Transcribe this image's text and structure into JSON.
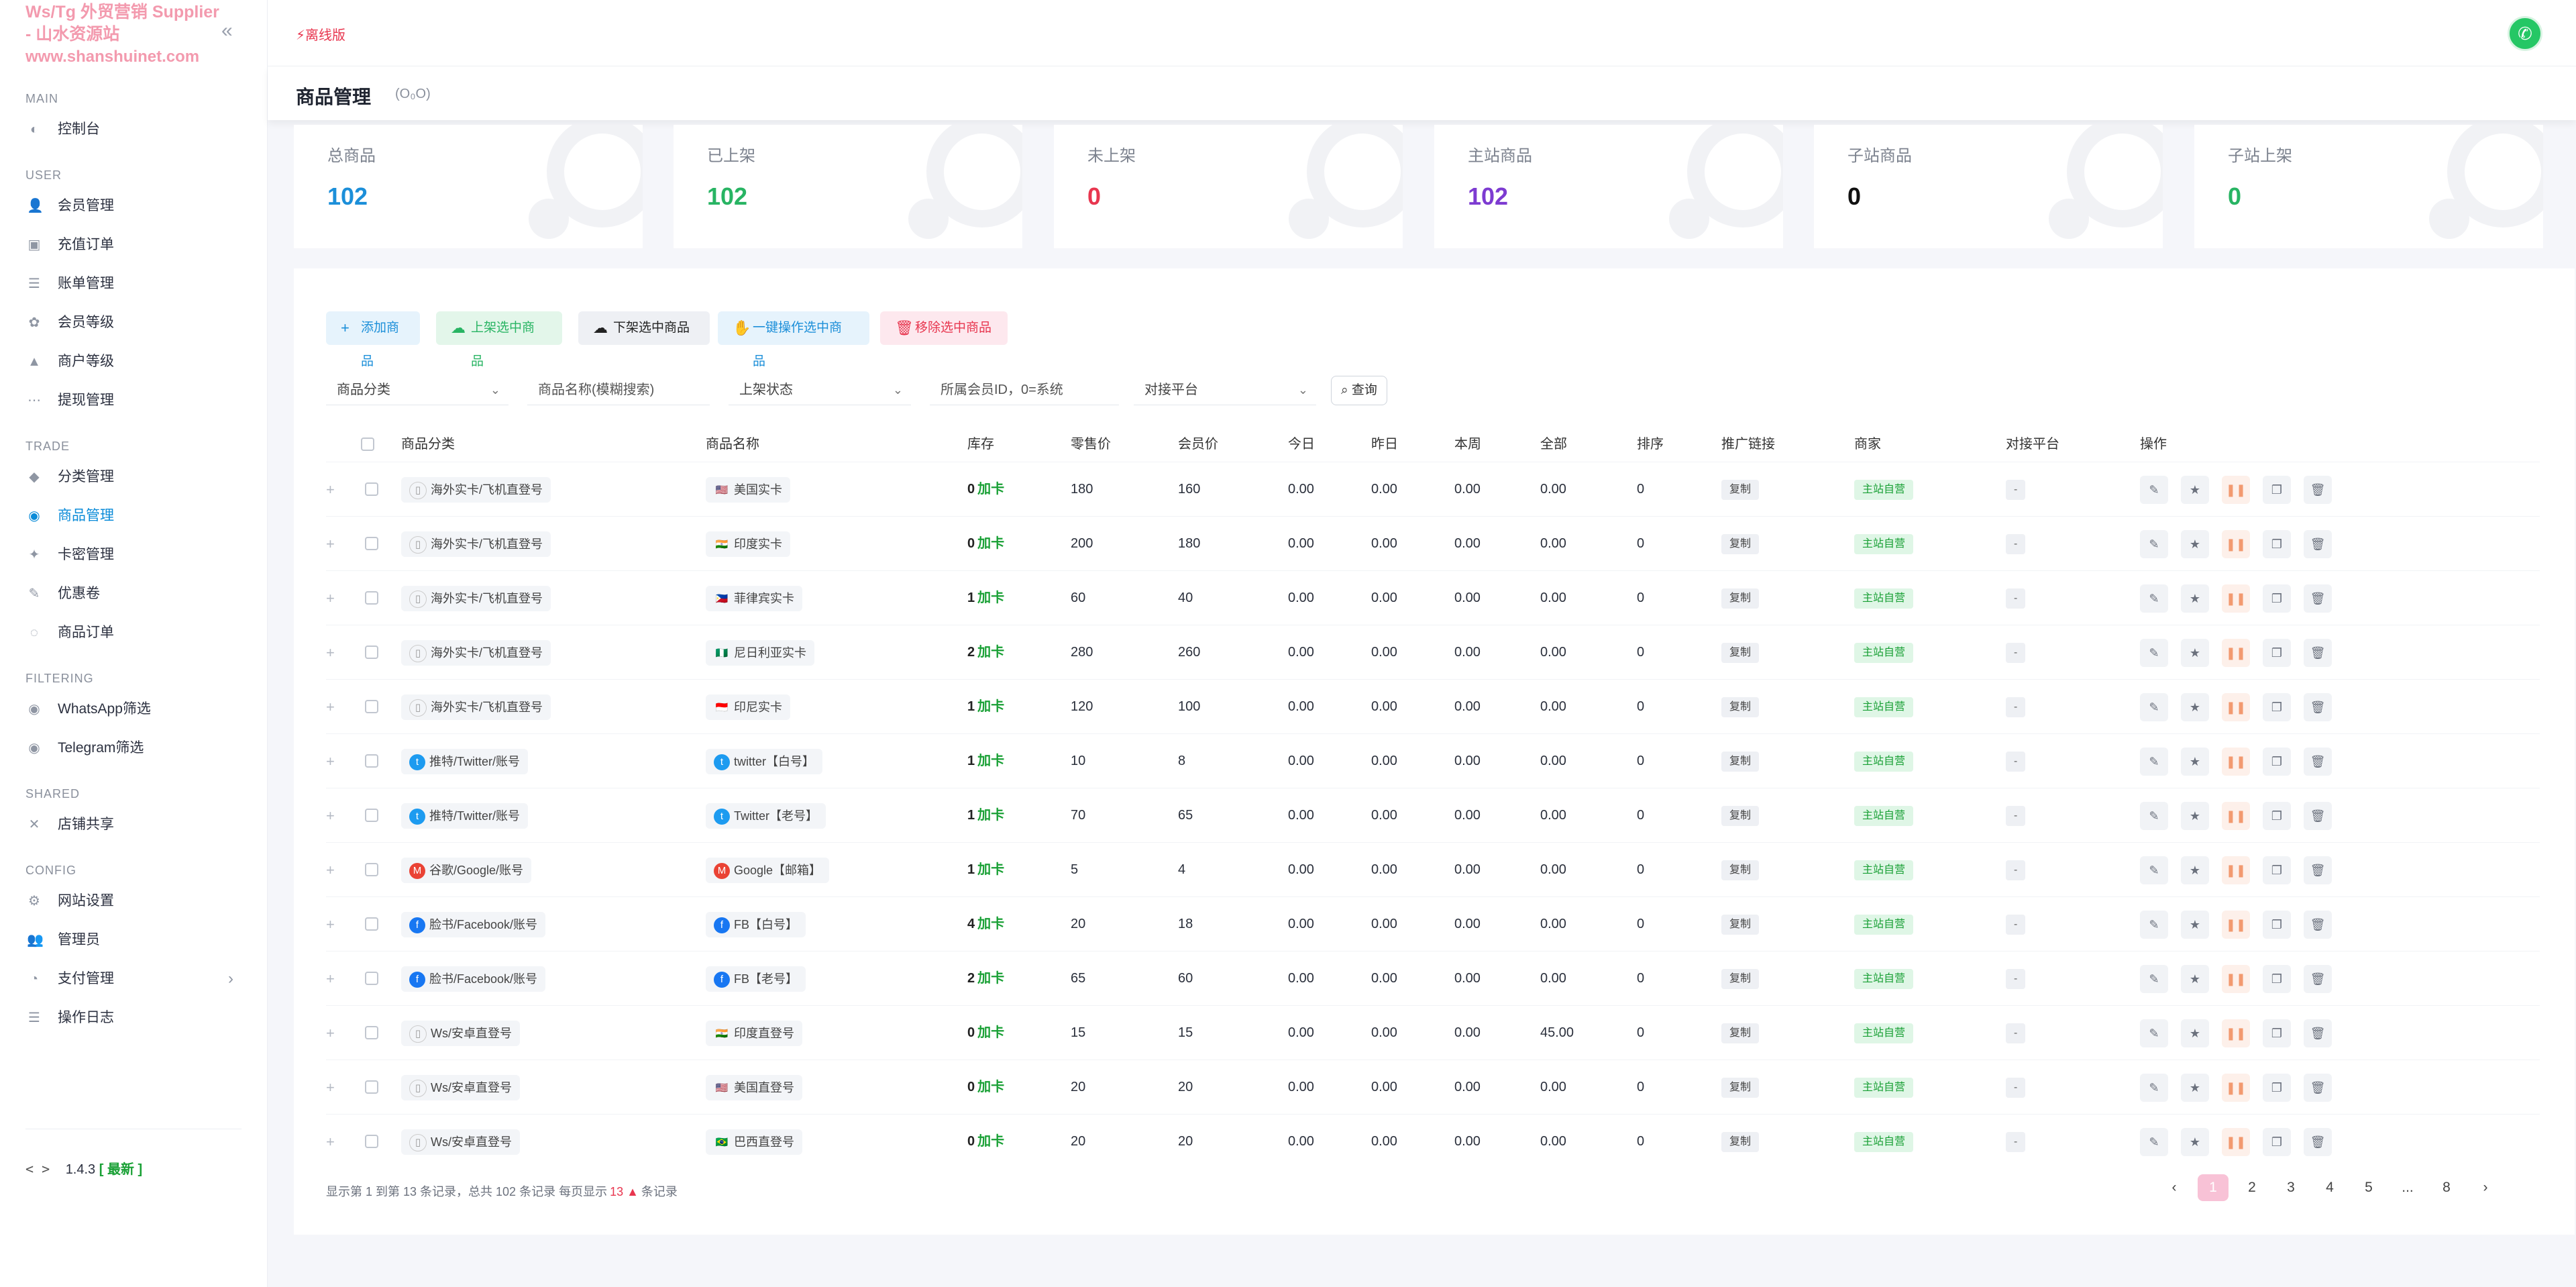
{
  "brand": {
    "line1": "Ws/Tg 外贸营销 Supplier",
    "line2": "- 山水资源站",
    "url": "www.shanshuinet.com"
  },
  "sidebar": {
    "sections": [
      {
        "title": "MAIN",
        "items": [
          {
            "label": "控制台",
            "icon": "dashboard-icon",
            "glyph": "◐"
          }
        ]
      },
      {
        "title": "USER",
        "items": [
          {
            "label": "会员管理",
            "icon": "user-icon",
            "glyph": "👤"
          },
          {
            "label": "充值订单",
            "icon": "recharge-icon",
            "glyph": "▣"
          },
          {
            "label": "账单管理",
            "icon": "bill-icon",
            "glyph": "☰"
          },
          {
            "label": "会员等级",
            "icon": "level-icon",
            "glyph": "✿"
          },
          {
            "label": "商户等级",
            "icon": "merchant-level-icon",
            "glyph": "▲"
          },
          {
            "label": "提现管理",
            "icon": "withdraw-icon",
            "glyph": "⋯"
          }
        ]
      },
      {
        "title": "TRADE",
        "items": [
          {
            "label": "分类管理",
            "icon": "category-icon",
            "glyph": "◆"
          },
          {
            "label": "商品管理",
            "icon": "goods-icon",
            "glyph": "◉",
            "active": true
          },
          {
            "label": "卡密管理",
            "icon": "card-key-icon",
            "glyph": "✦"
          },
          {
            "label": "优惠卷",
            "icon": "coupon-icon",
            "glyph": "✎"
          },
          {
            "label": "商品订单",
            "icon": "order-icon",
            "glyph": "◌"
          }
        ]
      },
      {
        "title": "FILTERING",
        "items": [
          {
            "label": "WhatsApp筛选",
            "icon": "whatsapp-filter-icon",
            "glyph": "◉"
          },
          {
            "label": "Telegram筛选",
            "icon": "telegram-filter-icon",
            "glyph": "◉"
          }
        ]
      },
      {
        "title": "SHARED",
        "items": [
          {
            "label": "店铺共享",
            "icon": "share-icon",
            "glyph": "✕"
          }
        ]
      },
      {
        "title": "CONFIG",
        "items": [
          {
            "label": "网站设置",
            "icon": "settings-icon",
            "glyph": "⚙"
          },
          {
            "label": "管理员",
            "icon": "admin-icon",
            "glyph": "👥"
          },
          {
            "label": "支付管理",
            "icon": "payment-icon",
            "glyph": "◔",
            "chevron": true
          },
          {
            "label": "操作日志",
            "icon": "log-icon",
            "glyph": "☰"
          }
        ]
      }
    ],
    "version": "1.4.3",
    "version_tag": "[ 最新 ]"
  },
  "topbar": {
    "mode": "离线版"
  },
  "page": {
    "title": "商品管理",
    "subtitle": "(O₀O)"
  },
  "stats": [
    {
      "label": "总商品",
      "value": "102",
      "color": "#1c8fd9"
    },
    {
      "label": "已上架",
      "value": "102",
      "color": "#28b463"
    },
    {
      "label": "未上架",
      "value": "0",
      "color": "#e8364f"
    },
    {
      "label": "主站商品",
      "value": "102",
      "color": "#7d3bd1"
    },
    {
      "label": "子站商品",
      "value": "0",
      "color": "#111111"
    },
    {
      "label": "子站上架",
      "value": "0",
      "color": "#28b463"
    }
  ],
  "actions": [
    {
      "label": "添加商品",
      "icon": "plus-icon",
      "glyph": "+",
      "bg": "#e6f3fc",
      "fg": "#1c8fd9"
    },
    {
      "label": "上架选中商品",
      "icon": "cloud-upload-icon",
      "glyph": "☁",
      "bg": "#e3f6ea",
      "fg": "#28b463"
    },
    {
      "label": "下架选中商品",
      "icon": "cloud-download-icon",
      "glyph": "☁",
      "bg": "#eef0f4",
      "fg": "#222222"
    },
    {
      "label": "一键操作选中商品",
      "icon": "hand-icon",
      "glyph": "✋",
      "bg": "#e6f3fc",
      "fg": "#1c8fd9"
    },
    {
      "label": "移除选中商品",
      "icon": "trash-icon",
      "glyph": "🗑",
      "bg": "#fde8ee",
      "fg": "#e8364f"
    }
  ],
  "filters": {
    "category": "商品分类",
    "name_placeholder": "商品名称(模糊搜索)",
    "status": "上架状态",
    "member_placeholder": "所属会员ID，0=系统",
    "platform": "对接平台",
    "query": "查询"
  },
  "columns": [
    "商品分类",
    "商品名称",
    "库存",
    "零售价",
    "会员价",
    "今日",
    "昨日",
    "本周",
    "全部",
    "排序",
    "推广链接",
    "商家",
    "对接平台",
    "操作"
  ],
  "rows": [
    {
      "category": "海外实卡/飞机直登号",
      "cat_icon": "▯",
      "cat_color": "#777",
      "name": "美国实卡",
      "flag": "🇺🇸",
      "stock": "0",
      "retail": "180",
      "member": "160",
      "today": "0.00",
      "yesterday": "0.00",
      "week": "0.00",
      "all": "0.00",
      "sort": "0"
    },
    {
      "category": "海外实卡/飞机直登号",
      "cat_icon": "▯",
      "cat_color": "#777",
      "name": "印度实卡",
      "flag": "🇮🇳",
      "stock": "0",
      "retail": "200",
      "member": "180",
      "today": "0.00",
      "yesterday": "0.00",
      "week": "0.00",
      "all": "0.00",
      "sort": "0"
    },
    {
      "category": "海外实卡/飞机直登号",
      "cat_icon": "▯",
      "cat_color": "#777",
      "name": "菲律宾实卡",
      "flag": "🇵🇭",
      "stock": "1",
      "retail": "60",
      "member": "40",
      "today": "0.00",
      "yesterday": "0.00",
      "week": "0.00",
      "all": "0.00",
      "sort": "0"
    },
    {
      "category": "海外实卡/飞机直登号",
      "cat_icon": "▯",
      "cat_color": "#777",
      "name": "尼日利亚实卡",
      "flag": "🇳🇬",
      "stock": "2",
      "retail": "280",
      "member": "260",
      "today": "0.00",
      "yesterday": "0.00",
      "week": "0.00",
      "all": "0.00",
      "sort": "0"
    },
    {
      "category": "海外实卡/飞机直登号",
      "cat_icon": "▯",
      "cat_color": "#777",
      "name": "印尼实卡",
      "flag": "🇮🇩",
      "stock": "1",
      "retail": "120",
      "member": "100",
      "today": "0.00",
      "yesterday": "0.00",
      "week": "0.00",
      "all": "0.00",
      "sort": "0"
    },
    {
      "category": "推特/Twitter/账号",
      "cat_icon": "t",
      "cat_color": "#1d9bf0",
      "name": "twitter【白号】",
      "flag": "t",
      "flag_color": "#1d9bf0",
      "stock": "1",
      "retail": "10",
      "member": "8",
      "today": "0.00",
      "yesterday": "0.00",
      "week": "0.00",
      "all": "0.00",
      "sort": "0"
    },
    {
      "category": "推特/Twitter/账号",
      "cat_icon": "t",
      "cat_color": "#1d9bf0",
      "name": "Twitter【老号】",
      "flag": "t",
      "flag_color": "#1d9bf0",
      "stock": "1",
      "retail": "70",
      "member": "65",
      "today": "0.00",
      "yesterday": "0.00",
      "week": "0.00",
      "all": "0.00",
      "sort": "0"
    },
    {
      "category": "谷歌/Google/账号",
      "cat_icon": "M",
      "cat_color": "#ea4335",
      "name": "Google【邮箱】",
      "flag": "M",
      "flag_color": "#ea4335",
      "stock": "1",
      "retail": "5",
      "member": "4",
      "today": "0.00",
      "yesterday": "0.00",
      "week": "0.00",
      "all": "0.00",
      "sort": "0"
    },
    {
      "category": "脸书/Facebook/账号",
      "cat_icon": "f",
      "cat_color": "#1877f2",
      "name": "FB【白号】",
      "flag": "f",
      "flag_color": "#1877f2",
      "stock": "4",
      "retail": "20",
      "member": "18",
      "today": "0.00",
      "yesterday": "0.00",
      "week": "0.00",
      "all": "0.00",
      "sort": "0"
    },
    {
      "category": "脸书/Facebook/账号",
      "cat_icon": "f",
      "cat_color": "#1877f2",
      "name": "FB【老号】",
      "flag": "f",
      "flag_color": "#1877f2",
      "stock": "2",
      "retail": "65",
      "member": "60",
      "today": "0.00",
      "yesterday": "0.00",
      "week": "0.00",
      "all": "0.00",
      "sort": "0"
    },
    {
      "category": "Ws/安卓直登号",
      "cat_icon": "▯",
      "cat_color": "#777",
      "name": "印度直登号",
      "flag": "🇮🇳",
      "stock": "0",
      "retail": "15",
      "member": "15",
      "today": "0.00",
      "yesterday": "0.00",
      "week": "0.00",
      "all": "45.00",
      "sort": "0"
    },
    {
      "category": "Ws/安卓直登号",
      "cat_icon": "▯",
      "cat_color": "#777",
      "name": "美国直登号",
      "flag": "🇺🇸",
      "stock": "0",
      "retail": "20",
      "member": "20",
      "today": "0.00",
      "yesterday": "0.00",
      "week": "0.00",
      "all": "0.00",
      "sort": "0"
    },
    {
      "category": "Ws/安卓直登号",
      "cat_icon": "▯",
      "cat_color": "#777",
      "name": "巴西直登号",
      "flag": "🇧🇷",
      "stock": "0",
      "retail": "20",
      "member": "20",
      "today": "0.00",
      "yesterday": "0.00",
      "week": "0.00",
      "all": "0.00",
      "sort": "0"
    }
  ],
  "row_labels": {
    "stock_add": "加卡",
    "promo": "复制",
    "merchant": "主站自营",
    "platform": "-"
  },
  "footer": {
    "prefix": "显示第 1 到第 13 条记录，总共 102 条记录 每页显示",
    "per_page": "13 ▲",
    "suffix": "条记录"
  },
  "pager": {
    "prev": "‹",
    "pages": [
      "1",
      "2",
      "3",
      "4",
      "5",
      "...",
      "8"
    ],
    "next": "›",
    "active": "1"
  }
}
